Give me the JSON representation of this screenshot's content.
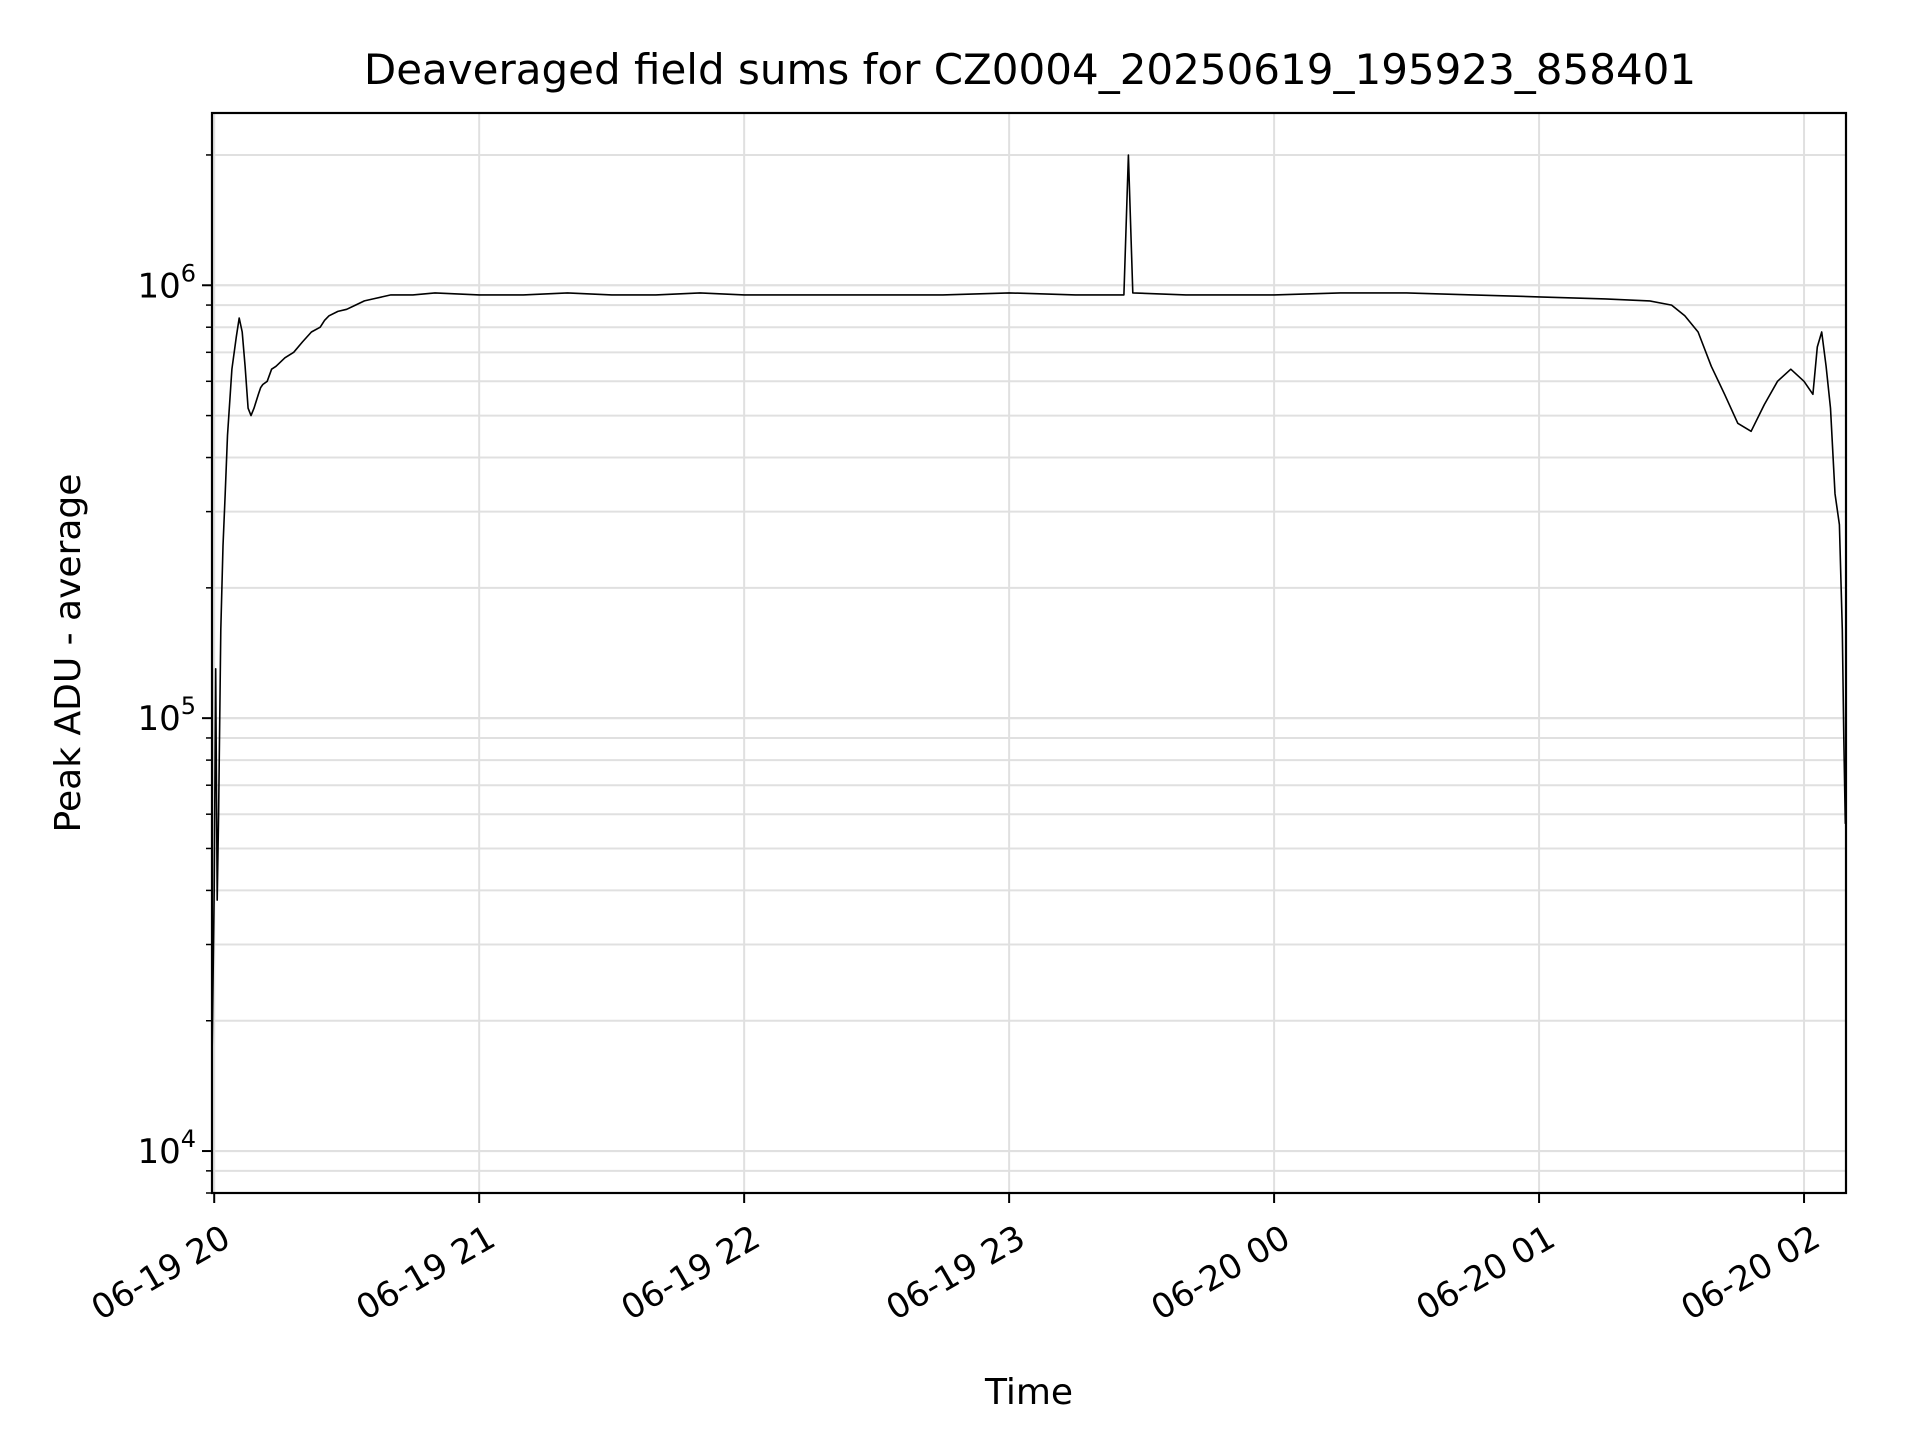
{
  "chart_data": {
    "type": "line",
    "title": "Deaveraged field sums for CZ0004_20250619_195923_858401",
    "xlabel": "Time",
    "ylabel": "Peak ADU - average",
    "yscale": "log",
    "ylim": [
      8000,
      2500000
    ],
    "xlim": [
      "2025-06-19 19:59:30",
      "2025-06-20 02:09:30"
    ],
    "grid": true,
    "line_color": "#000000",
    "grid_color": "#e0e0e0",
    "x_ticks": [
      {
        "label": "06-19 20",
        "value": "2025-06-19 20:00"
      },
      {
        "label": "06-19 21",
        "value": "2025-06-19 21:00"
      },
      {
        "label": "06-19 22",
        "value": "2025-06-19 22:00"
      },
      {
        "label": "06-19 23",
        "value": "2025-06-19 23:00"
      },
      {
        "label": "06-20 00",
        "value": "2025-06-20 00:00"
      },
      {
        "label": "06-20 01",
        "value": "2025-06-20 01:00"
      },
      {
        "label": "06-20 02",
        "value": "2025-06-20 02:00"
      }
    ],
    "y_ticks": [
      {
        "base": "10",
        "exp": "4",
        "value": 10000
      },
      {
        "base": "10",
        "exp": "5",
        "value": 100000
      },
      {
        "base": "10",
        "exp": "6",
        "value": 1000000
      }
    ],
    "series": [
      {
        "x": [
          "2025-06-19 19:59:30",
          "2025-06-19 20:00:00",
          "2025-06-19 20:00:20",
          "2025-06-19 20:00:40",
          "2025-06-19 20:01:00",
          "2025-06-19 20:01:30",
          "2025-06-19 20:02:00",
          "2025-06-19 20:02:30",
          "2025-06-19 20:03:00",
          "2025-06-19 20:04:00",
          "2025-06-19 20:05:00",
          "2025-06-19 20:05:40",
          "2025-06-19 20:06:20",
          "2025-06-19 20:07:00",
          "2025-06-19 20:07:40",
          "2025-06-19 20:08:20",
          "2025-06-19 20:09:00",
          "2025-06-19 20:10:00",
          "2025-06-19 20:10:30",
          "2025-06-19 20:11:00",
          "2025-06-19 20:12:00",
          "2025-06-19 20:13:00",
          "2025-06-19 20:14:00",
          "2025-06-19 20:16:00",
          "2025-06-19 20:18:00",
          "2025-06-19 20:20:00",
          "2025-06-19 20:22:00",
          "2025-06-19 20:24:00",
          "2025-06-19 20:25:00",
          "2025-06-19 20:26:00",
          "2025-06-19 20:28:00",
          "2025-06-19 20:30:00",
          "2025-06-19 20:32:00",
          "2025-06-19 20:34:00",
          "2025-06-19 20:36:00",
          "2025-06-19 20:38:00",
          "2025-06-19 20:40:00",
          "2025-06-19 20:45:00",
          "2025-06-19 20:50:00",
          "2025-06-19 21:00:00",
          "2025-06-19 21:10:00",
          "2025-06-19 21:20:00",
          "2025-06-19 21:30:00",
          "2025-06-19 21:40:00",
          "2025-06-19 21:50:00",
          "2025-06-19 22:00:00",
          "2025-06-19 22:15:00",
          "2025-06-19 22:30:00",
          "2025-06-19 22:45:00",
          "2025-06-19 23:00:00",
          "2025-06-19 23:15:00",
          "2025-06-19 23:26:00",
          "2025-06-19 23:27:00",
          "2025-06-19 23:28:00",
          "2025-06-19 23:40:00",
          "2025-06-20 00:00:00",
          "2025-06-20 00:15:00",
          "2025-06-20 00:30:00",
          "2025-06-20 00:45:00",
          "2025-06-20 01:00:00",
          "2025-06-20 01:15:00",
          "2025-06-20 01:25:00",
          "2025-06-20 01:30:00",
          "2025-06-20 01:33:00",
          "2025-06-20 01:36:00",
          "2025-06-20 01:39:00",
          "2025-06-20 01:42:00",
          "2025-06-20 01:45:00",
          "2025-06-20 01:48:00",
          "2025-06-20 01:51:00",
          "2025-06-20 01:54:00",
          "2025-06-20 01:57:00",
          "2025-06-20 02:00:00",
          "2025-06-20 02:02:00",
          "2025-06-20 02:03:00",
          "2025-06-20 02:04:00",
          "2025-06-20 02:05:00",
          "2025-06-20 02:06:00",
          "2025-06-20 02:07:00",
          "2025-06-20 02:08:00",
          "2025-06-20 02:08:40",
          "2025-06-20 02:09:00",
          "2025-06-20 02:09:20"
        ],
        "y": [
          16000,
          40000,
          130000,
          38000,
          60000,
          160000,
          250000,
          330000,
          450000,
          640000,
          760000,
          840000,
          780000,
          650000,
          520000,
          500000,
          520000,
          560000,
          580000,
          590000,
          600000,
          640000,
          650000,
          680000,
          700000,
          740000,
          780000,
          800000,
          830000,
          850000,
          870000,
          880000,
          900000,
          920000,
          930000,
          940000,
          950000,
          950000,
          960000,
          950000,
          950000,
          960000,
          950000,
          950000,
          960000,
          950000,
          950000,
          950000,
          950000,
          960000,
          950000,
          950000,
          2000000,
          960000,
          950000,
          950000,
          960000,
          960000,
          950000,
          940000,
          930000,
          920000,
          900000,
          850000,
          780000,
          650000,
          560000,
          480000,
          460000,
          530000,
          600000,
          640000,
          600000,
          560000,
          720000,
          780000,
          650000,
          520000,
          330000,
          280000,
          160000,
          90000,
          57000
        ]
      }
    ]
  }
}
